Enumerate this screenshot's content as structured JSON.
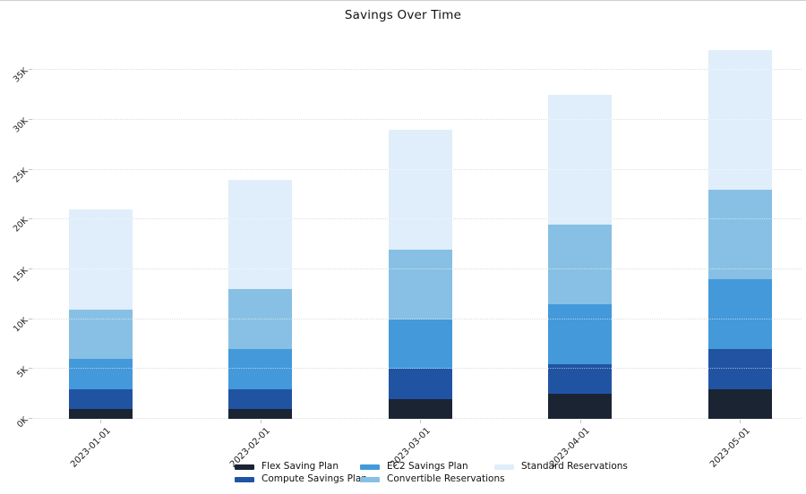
{
  "chart_data": {
    "type": "bar",
    "stacked": true,
    "title": "Savings Over Time",
    "xlabel": "",
    "ylabel": "",
    "categories": [
      "2023-01-01",
      "2023-02-01",
      "2023-03-01",
      "2023-04-01",
      "2023-05-01"
    ],
    "series": [
      {
        "name": "Flex Saving Plan",
        "color": "#1b2433",
        "values": [
          1000,
          1000,
          2000,
          2500,
          3000
        ]
      },
      {
        "name": "Compute Savings Plan",
        "color": "#2153a3",
        "values": [
          2000,
          2000,
          3000,
          3000,
          4000
        ]
      },
      {
        "name": "EC2 Savings Plan",
        "color": "#4399da",
        "values": [
          3000,
          4000,
          5000,
          6000,
          7000
        ]
      },
      {
        "name": "Convertible Reservations",
        "color": "#87c0e4",
        "values": [
          5000,
          6000,
          7000,
          8000,
          9000
        ]
      },
      {
        "name": "Standard Reservations",
        "color": "#dfeefa",
        "values": [
          10000,
          11000,
          12000,
          13000,
          14000
        ]
      }
    ],
    "totals": [
      21000,
      24000,
      29000,
      32500,
      37000
    ],
    "ylim": [
      0,
      38000
    ],
    "ytick_interval": 5000,
    "ytick_labels": [
      "0K",
      "5K",
      "10K",
      "15K",
      "20K",
      "25K",
      "30K",
      "35K"
    ],
    "grid": "horizontal-dotted",
    "legend_position": "bottom",
    "legend_columns": [
      [
        "Flex Saving Plan",
        "Compute Savings Plan"
      ],
      [
        "EC2 Savings Plan",
        "Convertible Reservations"
      ],
      [
        "Standard Reservations"
      ]
    ]
  }
}
